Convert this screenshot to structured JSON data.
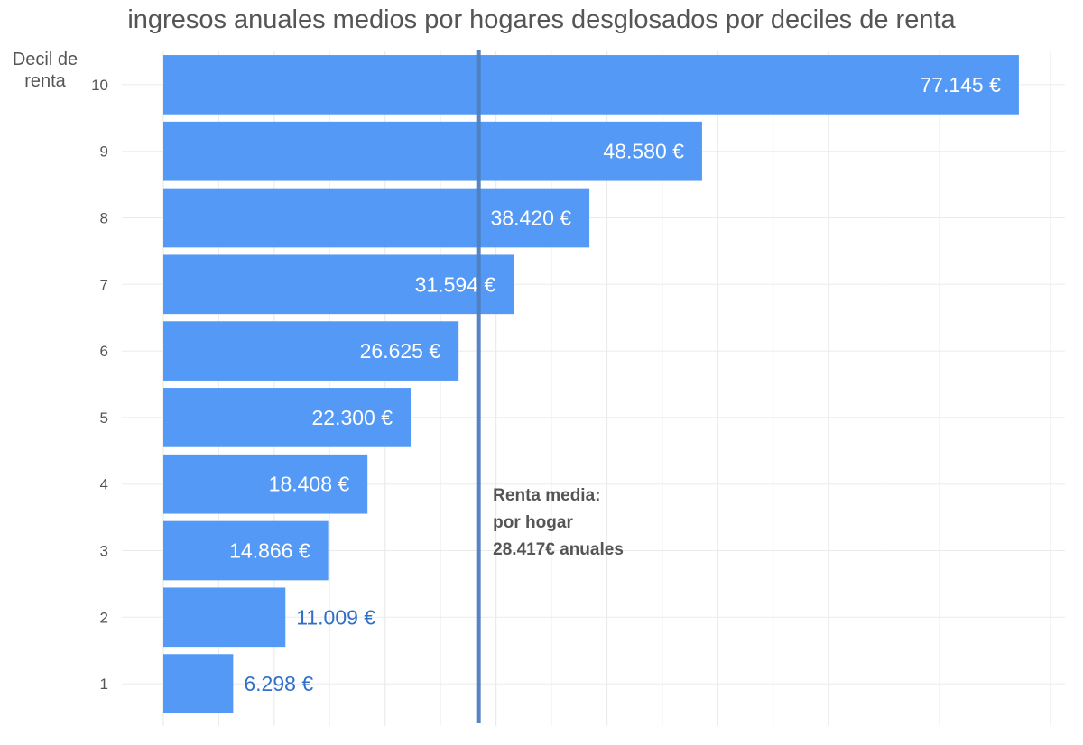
{
  "chart_data": {
    "type": "bar",
    "orientation": "horizontal",
    "title": "ingresos anuales medios por hogares desglosados por deciles de renta",
    "ylabel": "Decil de renta",
    "xlabel": "",
    "categories": [
      "1",
      "2",
      "3",
      "4",
      "5",
      "6",
      "7",
      "8",
      "9",
      "10"
    ],
    "values": [
      6298,
      11009,
      14866,
      18408,
      22300,
      26625,
      31594,
      38420,
      48580,
      77145
    ],
    "value_labels": [
      "6.298 €",
      "11.009 €",
      "14.866 €",
      "18.408 €",
      "22.300 €",
      "26.625 €",
      "31.594 €",
      "38.420 €",
      "48.580 €",
      "77.145 €"
    ],
    "xlim": [
      0,
      80000
    ],
    "grid": true,
    "legend": "none",
    "reference_line": {
      "value": 28417,
      "orientation": "vertical",
      "color": "#4f7fbf",
      "annotation": [
        "Renta media:",
        "por hogar",
        "28.417€ anuales"
      ]
    },
    "colors": {
      "bar": "#5399f5",
      "label_inside": "#ffffff",
      "label_outside": "#2f6fc9",
      "grid": "#ebebeb",
      "text": "#555555"
    }
  }
}
